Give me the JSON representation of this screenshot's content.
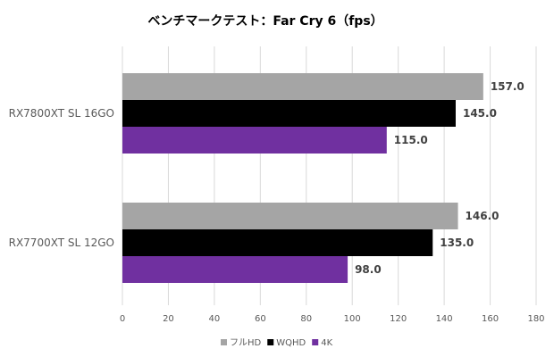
{
  "chart_data": {
    "type": "bar",
    "orientation": "horizontal",
    "title": "ベンチマークテスト：Far Cry 6（fps）",
    "categories": [
      "RX7800XT SL 16GO",
      "RX7700XT SL 12GO"
    ],
    "series": [
      {
        "name": "フルHD",
        "color": "#A5A5A5",
        "values": [
          157.0,
          146.0
        ]
      },
      {
        "name": "WQHD",
        "color": "#000000",
        "values": [
          145.0,
          135.0
        ]
      },
      {
        "name": "4K",
        "color": "#7030A0",
        "values": [
          115.0,
          98.0
        ]
      }
    ],
    "xlim": [
      0,
      180
    ],
    "xticks": [
      0,
      20,
      40,
      60,
      80,
      100,
      120,
      140,
      160,
      180
    ],
    "grid": true,
    "legend": "bottom",
    "data_labels": [
      "157.0",
      "146.0",
      "145.0",
      "135.0",
      "115.0",
      "98.0"
    ]
  }
}
